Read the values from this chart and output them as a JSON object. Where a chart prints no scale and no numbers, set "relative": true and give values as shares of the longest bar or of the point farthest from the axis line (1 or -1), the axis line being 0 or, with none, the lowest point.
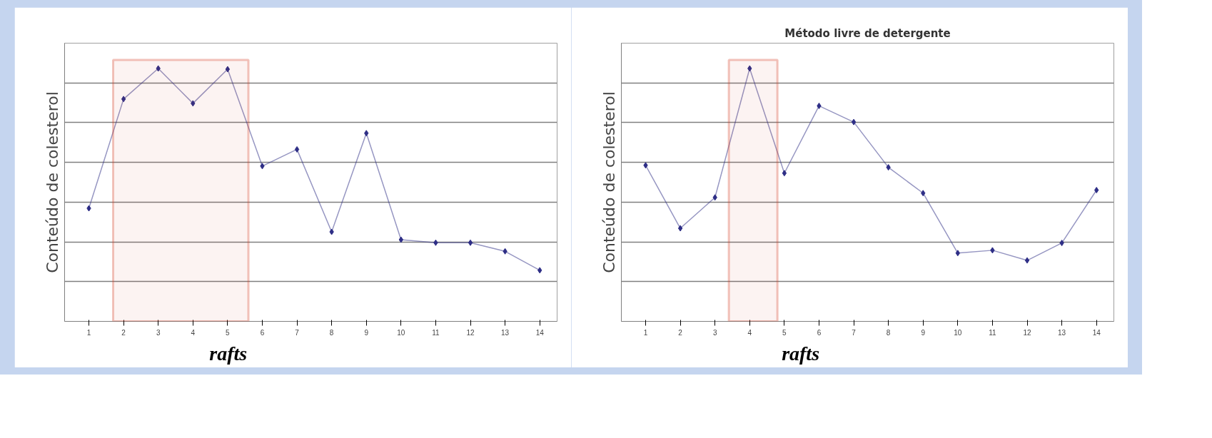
{
  "chart_data": [
    {
      "type": "line",
      "relative": true,
      "ylabel": "Conteúdo de colesterol",
      "x": [
        1,
        2,
        3,
        4,
        5,
        6,
        7,
        8,
        9,
        10,
        11,
        12,
        13,
        14
      ],
      "xlim": [
        0.3,
        14.5
      ],
      "xticks": [
        1,
        2,
        3,
        4,
        5,
        6,
        7,
        8,
        9,
        10,
        11,
        12,
        13,
        14
      ],
      "series": [
        {
          "color": "#2e2e86",
          "values": [
            0.447,
            0.879,
            1.0,
            0.862,
            0.997,
            0.614,
            0.68,
            0.354,
            0.744,
            0.323,
            0.311,
            0.311,
            0.277,
            0.202
          ]
        }
      ],
      "marker": "diamond",
      "line_style": "solid",
      "grid": "y",
      "bands": [
        {
          "axis": "x",
          "from": 1.7,
          "to": 5.6,
          "label": "rafts",
          "color": "#d33a22"
        }
      ]
    },
    {
      "type": "line",
      "relative": true,
      "title": "Método livre de detergente",
      "ylabel": "Conteúdo de colesterol",
      "x": [
        1,
        2,
        3,
        4,
        5,
        6,
        7,
        8,
        9,
        10,
        11,
        12,
        13,
        14
      ],
      "xlim": [
        0.3,
        14.5
      ],
      "xticks": [
        1,
        2,
        3,
        4,
        5,
        6,
        7,
        8,
        9,
        10,
        11,
        12,
        13,
        14
      ],
      "series": [
        {
          "color": "#2e2e86",
          "values": [
            0.617,
            0.368,
            0.49,
            1.0,
            0.586,
            0.852,
            0.788,
            0.609,
            0.507,
            0.27,
            0.281,
            0.241,
            0.31,
            0.519
          ]
        }
      ],
      "marker": "diamond",
      "line_style": "solid",
      "grid": "y",
      "bands": [
        {
          "axis": "x",
          "from": 3.4,
          "to": 4.8,
          "label": "rafts",
          "color": "#d33a22"
        }
      ]
    }
  ]
}
